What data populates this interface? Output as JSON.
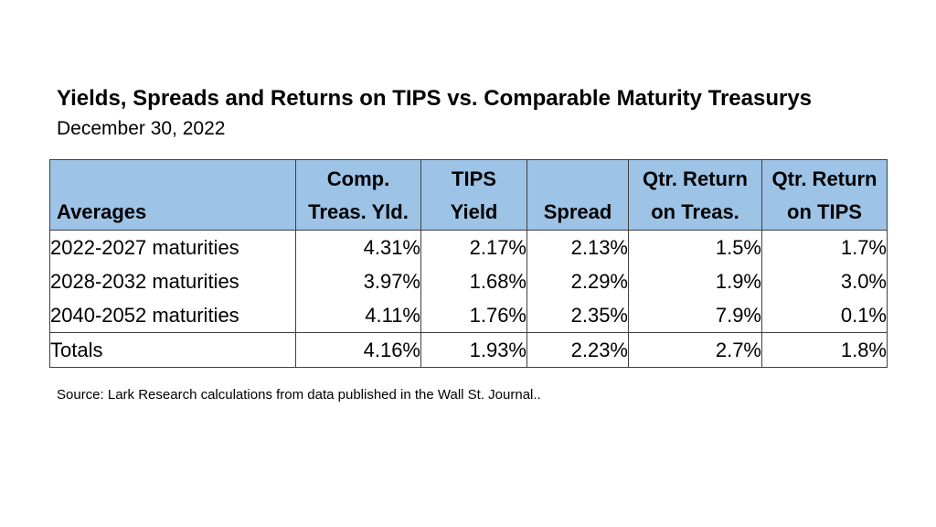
{
  "chart_data": {
    "type": "table",
    "title": "Yields, Spreads and Returns on TIPS vs. Comparable Maturity Treasurys",
    "subtitle": "December 30, 2022",
    "columns": [
      {
        "line1": "",
        "line2": "Averages"
      },
      {
        "line1": "Comp.",
        "line2": "Treas. Yld."
      },
      {
        "line1": "TIPS",
        "line2": "Yield"
      },
      {
        "line1": "",
        "line2": "Spread"
      },
      {
        "line1": "Qtr. Return",
        "line2": "on Treas."
      },
      {
        "line1": "Qtr. Return",
        "line2": "on TIPS"
      }
    ],
    "rows": [
      {
        "label": "2022-2027 maturities",
        "values": [
          "4.31%",
          "2.17%",
          "2.13%",
          "1.5%",
          "1.7%"
        ]
      },
      {
        "label": "2028-2032 maturities",
        "values": [
          "3.97%",
          "1.68%",
          "2.29%",
          "1.9%",
          "3.0%"
        ]
      },
      {
        "label": "2040-2052 maturities",
        "values": [
          "4.11%",
          "1.76%",
          "2.35%",
          "7.9%",
          "0.1%"
        ]
      }
    ],
    "totals": {
      "label": "Totals",
      "values": [
        "4.16%",
        "1.93%",
        "2.23%",
        "2.7%",
        "1.8%"
      ]
    },
    "source": "Source:  Lark Research calculations from data published in the Wall St. Journal.."
  }
}
